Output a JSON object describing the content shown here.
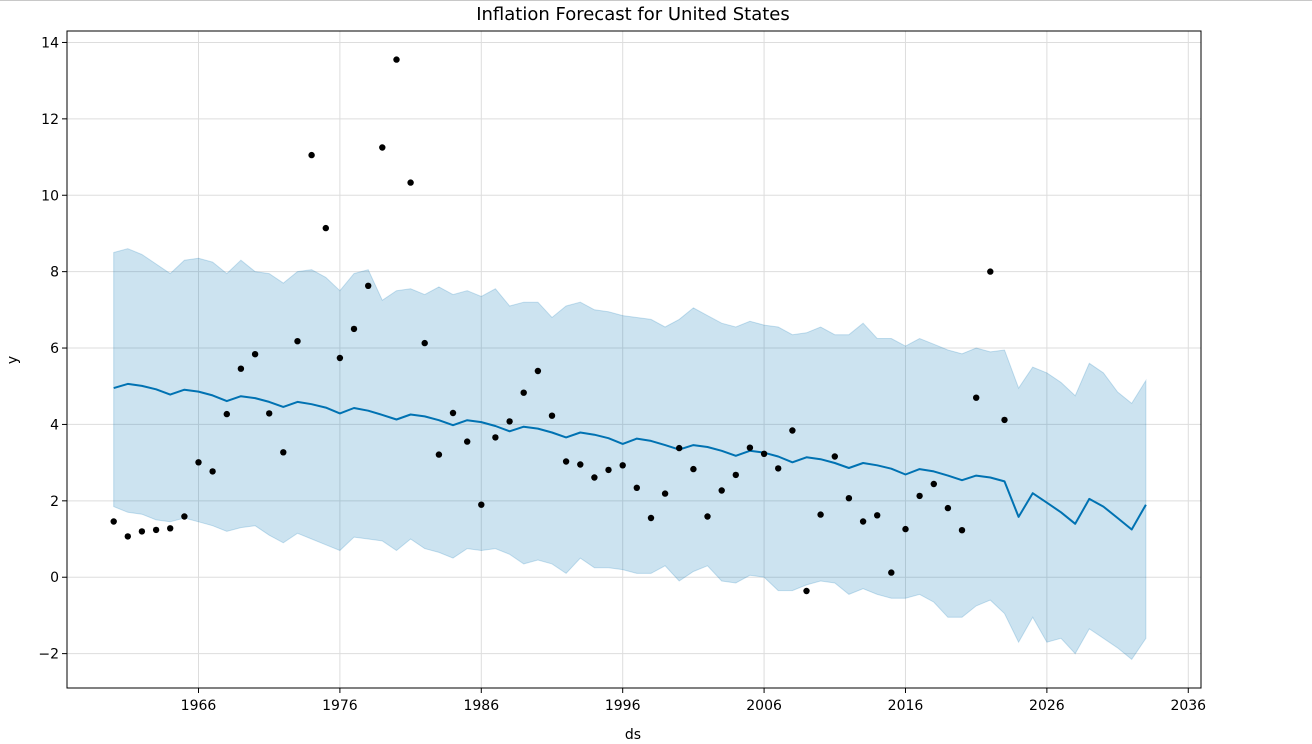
{
  "chart_data": {
    "type": "line",
    "title": "Inflation Forecast for United States",
    "xlabel": "ds",
    "ylabel": "y",
    "xlim": [
      1956.7,
      2036.9
    ],
    "ylim": [
      -2.9,
      14.3
    ],
    "x_ticks": [
      1966,
      1976,
      1986,
      1996,
      2006,
      2016,
      2026,
      2036
    ],
    "y_ticks": [
      -2,
      0,
      2,
      4,
      6,
      8,
      10,
      12,
      14
    ],
    "grid": true,
    "colors": {
      "forecast_line": "#0072b2",
      "interval_fill": "#0072b2",
      "points": "#000000",
      "grid": "#dddddd",
      "frame": "#000000"
    },
    "series": [
      {
        "name": "",
        "kind": "uncertainty-interval",
        "x": [
          1960,
          1961,
          1962,
          1963,
          1964,
          1965,
          1966,
          1967,
          1968,
          1969,
          1970,
          1971,
          1972,
          1973,
          1974,
          1975,
          1976,
          1977,
          1978,
          1979,
          1980,
          1981,
          1982,
          1983,
          1984,
          1985,
          1986,
          1987,
          1988,
          1989,
          1990,
          1991,
          1992,
          1993,
          1994,
          1995,
          1996,
          1997,
          1998,
          1999,
          2000,
          2001,
          2002,
          2003,
          2004,
          2005,
          2006,
          2007,
          2008,
          2009,
          2010,
          2011,
          2012,
          2013,
          2014,
          2015,
          2016,
          2017,
          2018,
          2019,
          2020,
          2021,
          2022,
          2023,
          2024,
          2025,
          2026,
          2027,
          2028,
          2029,
          2030,
          2031,
          2032,
          2033
        ],
        "upper": [
          8.5,
          8.6,
          8.45,
          8.2,
          7.95,
          8.3,
          8.35,
          8.25,
          7.95,
          8.3,
          8.0,
          7.95,
          7.7,
          8.0,
          8.05,
          7.85,
          7.5,
          7.95,
          8.05,
          7.25,
          7.5,
          7.55,
          7.4,
          7.6,
          7.4,
          7.5,
          7.35,
          7.55,
          7.1,
          7.2,
          7.2,
          6.8,
          7.1,
          7.2,
          7.0,
          6.95,
          6.85,
          6.8,
          6.75,
          6.55,
          6.75,
          7.05,
          6.85,
          6.65,
          6.55,
          6.7,
          6.6,
          6.55,
          6.35,
          6.4,
          6.55,
          6.35,
          6.35,
          6.65,
          6.25,
          6.25,
          6.05,
          6.25,
          6.1,
          5.95,
          5.85,
          6.0,
          5.9,
          5.95,
          4.95,
          5.5,
          5.35,
          5.1,
          4.75,
          5.6,
          5.35,
          4.85,
          4.55,
          5.15
        ],
        "lower": [
          1.85,
          1.7,
          1.65,
          1.5,
          1.45,
          1.55,
          1.45,
          1.35,
          1.2,
          1.3,
          1.35,
          1.1,
          0.9,
          1.15,
          1.0,
          0.85,
          0.7,
          1.05,
          1.0,
          0.95,
          0.7,
          1.0,
          0.75,
          0.65,
          0.5,
          0.75,
          0.7,
          0.75,
          0.6,
          0.35,
          0.45,
          0.35,
          0.1,
          0.5,
          0.25,
          0.25,
          0.2,
          0.1,
          0.1,
          0.3,
          -0.1,
          0.15,
          0.3,
          -0.1,
          -0.15,
          0.05,
          0.0,
          -0.35,
          -0.35,
          -0.2,
          -0.1,
          -0.15,
          -0.45,
          -0.3,
          -0.45,
          -0.55,
          -0.55,
          -0.45,
          -0.65,
          -1.05,
          -1.05,
          -0.75,
          -0.6,
          -0.95,
          -1.7,
          -1.05,
          -1.7,
          -1.6,
          -2.0,
          -1.35,
          -1.6,
          -1.85,
          -2.15,
          -1.6
        ]
      },
      {
        "name": "",
        "kind": "forecast-line",
        "x": [
          1960,
          1961,
          1962,
          1963,
          1964,
          1965,
          1966,
          1967,
          1968,
          1969,
          1970,
          1971,
          1972,
          1973,
          1974,
          1975,
          1976,
          1977,
          1978,
          1979,
          1980,
          1981,
          1982,
          1983,
          1984,
          1985,
          1986,
          1987,
          1988,
          1989,
          1990,
          1991,
          1992,
          1993,
          1994,
          1995,
          1996,
          1997,
          1998,
          1999,
          2000,
          2001,
          2002,
          2003,
          2004,
          2005,
          2006,
          2007,
          2008,
          2009,
          2010,
          2011,
          2012,
          2013,
          2014,
          2015,
          2016,
          2017,
          2018,
          2019,
          2020,
          2021,
          2022,
          2023,
          2024,
          2025,
          2026,
          2027,
          2028,
          2029,
          2030,
          2031,
          2032,
          2033
        ],
        "values": [
          4.95,
          5.06,
          5.01,
          4.92,
          4.78,
          4.91,
          4.86,
          4.76,
          4.61,
          4.74,
          4.69,
          4.59,
          4.46,
          4.59,
          4.53,
          4.44,
          4.29,
          4.43,
          4.36,
          4.25,
          4.13,
          4.26,
          4.21,
          4.11,
          3.98,
          4.11,
          4.06,
          3.96,
          3.82,
          3.94,
          3.89,
          3.79,
          3.66,
          3.79,
          3.73,
          3.64,
          3.49,
          3.63,
          3.57,
          3.46,
          3.34,
          3.46,
          3.41,
          3.31,
          3.18,
          3.31,
          3.26,
          3.16,
          3.01,
          3.14,
          3.09,
          2.99,
          2.86,
          2.99,
          2.93,
          2.84,
          2.69,
          2.83,
          2.77,
          2.66,
          2.54,
          2.66,
          2.61,
          2.51,
          1.58,
          2.2,
          1.95,
          1.7,
          1.4,
          2.05,
          1.85,
          1.55,
          1.25,
          1.9
        ]
      },
      {
        "name": "",
        "kind": "observed-points",
        "x": [
          1960,
          1961,
          1962,
          1963,
          1964,
          1965,
          1966,
          1967,
          1968,
          1969,
          1970,
          1971,
          1972,
          1973,
          1974,
          1975,
          1976,
          1977,
          1978,
          1979,
          1980,
          1981,
          1982,
          1983,
          1984,
          1985,
          1986,
          1987,
          1988,
          1989,
          1990,
          1991,
          1992,
          1993,
          1994,
          1995,
          1996,
          1997,
          1998,
          1999,
          2000,
          2001,
          2002,
          2003,
          2004,
          2005,
          2006,
          2007,
          2008,
          2009,
          2010,
          2011,
          2012,
          2013,
          2014,
          2015,
          2016,
          2017,
          2018,
          2019,
          2020,
          2021,
          2022,
          2023
        ],
        "values": [
          1.46,
          1.07,
          1.2,
          1.24,
          1.28,
          1.59,
          3.01,
          2.77,
          4.27,
          5.46,
          5.84,
          4.29,
          3.27,
          6.18,
          11.05,
          9.14,
          5.74,
          6.5,
          7.63,
          11.25,
          13.55,
          10.33,
          6.13,
          3.21,
          4.3,
          3.55,
          1.9,
          3.66,
          4.08,
          4.83,
          5.4,
          4.23,
          3.03,
          2.95,
          2.61,
          2.81,
          2.93,
          2.34,
          1.55,
          2.19,
          3.38,
          2.83,
          1.59,
          2.27,
          2.68,
          3.39,
          3.23,
          2.85,
          3.84,
          -0.36,
          1.64,
          3.16,
          2.07,
          1.46,
          1.62,
          0.12,
          1.26,
          2.13,
          2.44,
          1.81,
          1.23,
          4.7,
          8.0,
          4.12
        ]
      }
    ]
  }
}
